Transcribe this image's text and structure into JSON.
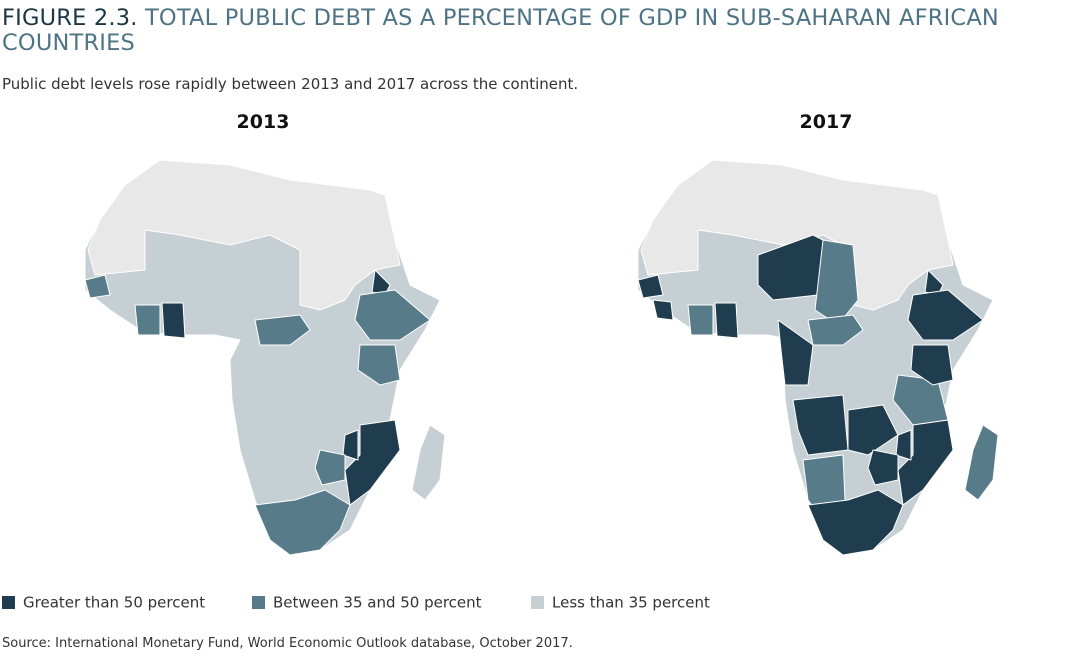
{
  "header": {
    "title_prefix": "FIGURE 2.3.",
    "title": "TOTAL PUBLIC DEBT AS A PERCENTAGE OF GDP IN SUB-SAHARAN AFRICAN COUNTRIES",
    "subtitle": "Public debt levels rose rapidly between 2013 and 2017 across the continent."
  },
  "maps": [
    {
      "title": "2013"
    },
    {
      "title": "2017"
    }
  ],
  "legend": [
    {
      "label": "Greater than 50 percent",
      "color": "#1f3d4e"
    },
    {
      "label": "Between 35 and 50 percent",
      "color": "#587b8a"
    },
    {
      "label": "Less than 35 percent",
      "color": "#c5cfd4"
    }
  ],
  "non_ssa_color": "#e8e8e8",
  "source": "Source: International Monetary Fund, World Economic Outlook database, October 2017."
}
